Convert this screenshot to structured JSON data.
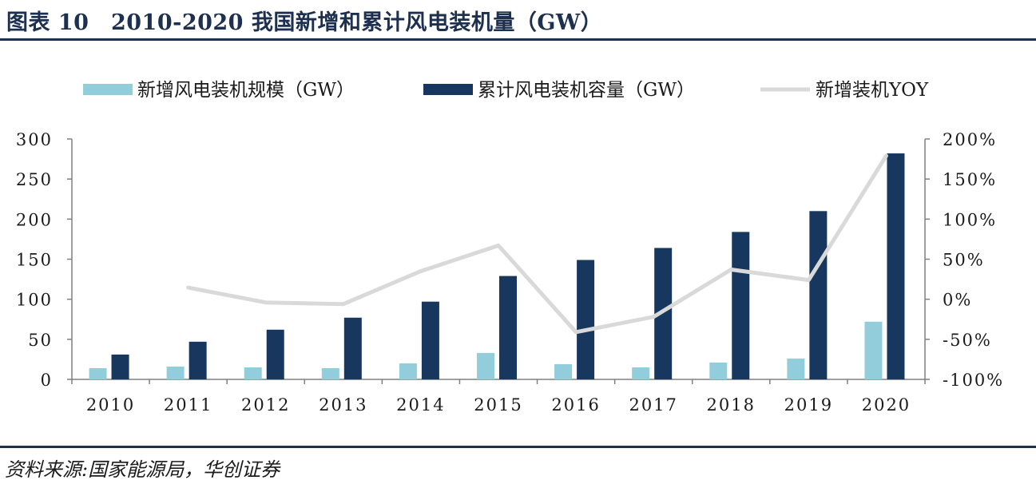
{
  "figure_title": "图表 10　2010-2020 我国新增和累计风电装机量（GW）",
  "source_note": "资料来源:国家能源局，华创证券",
  "colors": {
    "new": "#92cddc",
    "cum": "#17375e",
    "yoy": "#d9d9d9",
    "axis": "#808080"
  },
  "chart_data": {
    "type": "bar",
    "categories": [
      "2010",
      "2011",
      "2012",
      "2013",
      "2014",
      "2015",
      "2016",
      "2017",
      "2018",
      "2019",
      "2020"
    ],
    "series": [
      {
        "name": "新增风电装机规模（GW）",
        "type": "bar",
        "axis": "left",
        "values": [
          14,
          16,
          15,
          14,
          20,
          33,
          19,
          15,
          21,
          26,
          72
        ]
      },
      {
        "name": "累计风电装机容量（GW）",
        "type": "bar",
        "axis": "left",
        "values": [
          31,
          47,
          62,
          77,
          97,
          129,
          149,
          164,
          184,
          210,
          282
        ]
      },
      {
        "name": "新增装机YOY",
        "type": "line",
        "axis": "right",
        "values": [
          null,
          14.5,
          -4,
          -6,
          35,
          67,
          -41,
          -22,
          37,
          24,
          179
        ]
      }
    ],
    "y_left": {
      "min": 0,
      "max": 300,
      "step": 50,
      "tick_labels": [
        "0",
        "50",
        "100",
        "150",
        "200",
        "250",
        "300"
      ]
    },
    "y_right": {
      "min": -100,
      "max": 200,
      "step": 50,
      "tick_labels": [
        "-100%",
        "-50%",
        "0%",
        "50%",
        "100%",
        "150%",
        "200%"
      ]
    },
    "legend": "top",
    "grid": false
  }
}
